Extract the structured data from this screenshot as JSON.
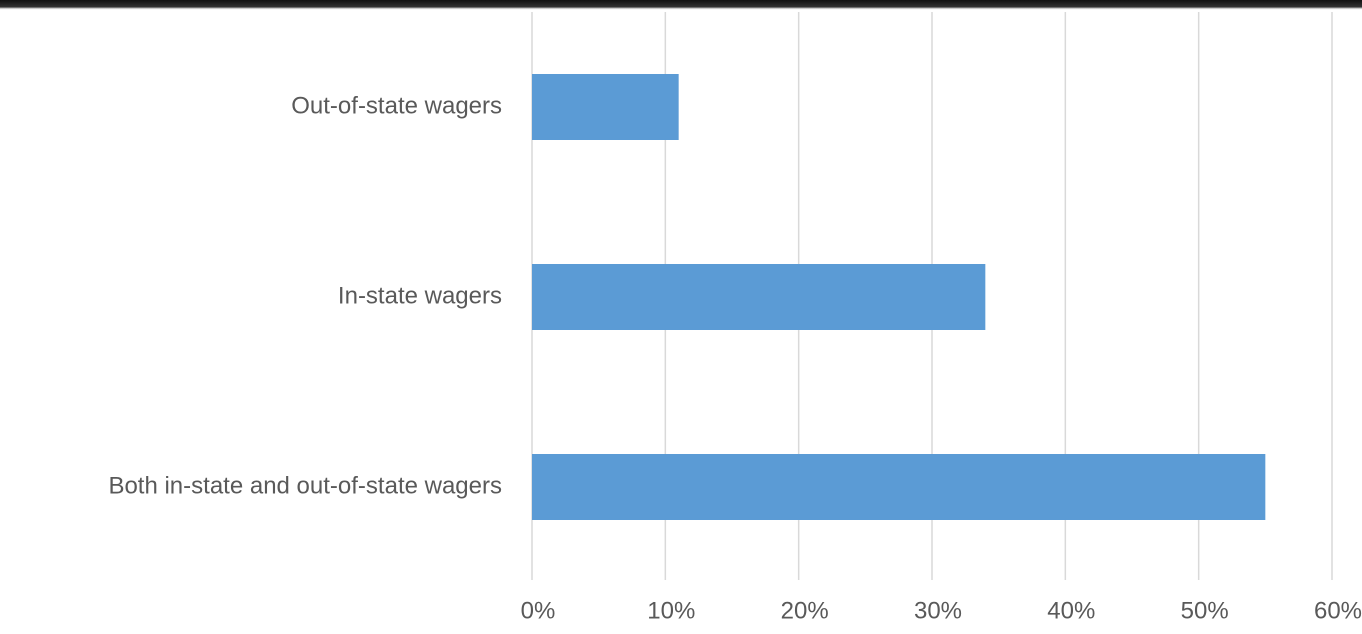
{
  "chart_data": {
    "type": "bar",
    "orientation": "horizontal",
    "categories": [
      "Out-of-state wagers",
      "In-state wagers",
      "Both in-state and out-of-state wagers"
    ],
    "values": [
      11,
      34,
      55
    ],
    "color": "#5b9bd5",
    "xlim": [
      0,
      60
    ],
    "xticks": [
      {
        "value": 0,
        "label": "0%"
      },
      {
        "value": 10,
        "label": "10%"
      },
      {
        "value": 20,
        "label": "20%"
      },
      {
        "value": 30,
        "label": "30%"
      },
      {
        "value": 40,
        "label": "40%"
      },
      {
        "value": 50,
        "label": "50%"
      },
      {
        "value": 60,
        "label": "60%"
      }
    ],
    "grid": true
  }
}
